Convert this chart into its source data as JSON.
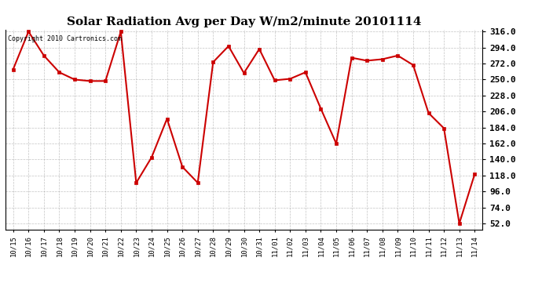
{
  "title": "Solar Radiation Avg per Day W/m2/minute 20101114",
  "copyright": "Copyright 2010 Cartronics.com",
  "x_labels": [
    "10/15",
    "10/16",
    "10/17",
    "10/18",
    "10/19",
    "10/20",
    "10/21",
    "10/22",
    "10/23",
    "10/24",
    "10/25",
    "10/26",
    "10/27",
    "10/28",
    "10/29",
    "10/30",
    "10/31",
    "11/01",
    "11/02",
    "11/03",
    "11/04",
    "11/05",
    "11/06",
    "11/07",
    "11/08",
    "11/09",
    "11/10",
    "11/11",
    "11/12",
    "11/13",
    "11/14"
  ],
  "y_values": [
    264,
    316,
    283,
    260,
    250,
    248,
    248,
    316,
    108,
    143,
    196,
    130,
    108,
    274,
    296,
    259,
    292,
    249,
    251,
    260,
    210,
    162,
    280,
    276,
    278,
    283,
    270,
    204,
    183,
    52,
    120
  ],
  "line_color": "#cc0000",
  "marker_color": "#cc0000",
  "bg_color": "#ffffff",
  "grid_color": "#aaaaaa",
  "title_fontsize": 11,
  "copyright_fontsize": 6,
  "ytick_fontsize": 8,
  "xtick_fontsize": 6.5,
  "ylim_min": 52,
  "ylim_max": 316,
  "yticks": [
    52.0,
    74.0,
    96.0,
    118.0,
    140.0,
    162.0,
    184.0,
    206.0,
    228.0,
    250.0,
    272.0,
    294.0,
    316.0
  ]
}
